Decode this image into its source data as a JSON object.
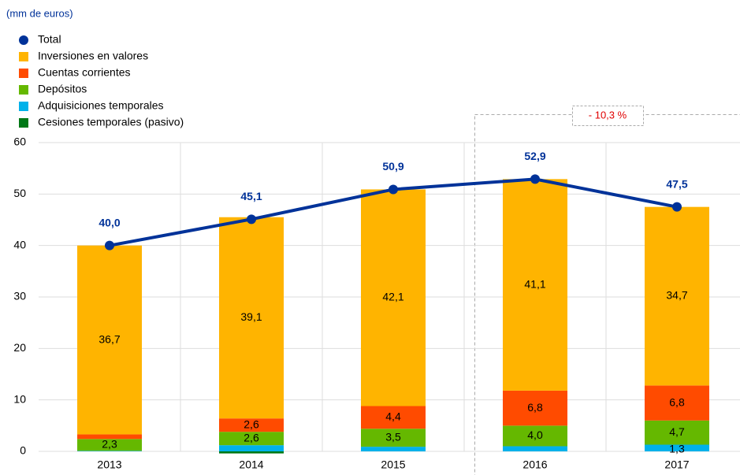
{
  "chart_data": {
    "type": "bar",
    "subtitle": "(mm de euros)",
    "categories": [
      "2013",
      "2014",
      "2015",
      "2016",
      "2017"
    ],
    "series": [
      {
        "name": "Cesiones temporales (pasivo)",
        "color": "#007816",
        "values": [
          0,
          -0.4,
          0,
          0,
          0
        ],
        "value_labels": [
          null,
          null,
          null,
          null,
          null
        ]
      },
      {
        "name": "Adquisiciones temporales",
        "color": "#00b1ea",
        "values": [
          0.1,
          1.2,
          0.9,
          1.0,
          1.3
        ],
        "value_labels": [
          null,
          null,
          null,
          null,
          "1,3"
        ]
      },
      {
        "name": "Depósitos",
        "color": "#65b800",
        "values": [
          2.3,
          2.6,
          3.5,
          4.0,
          4.7
        ],
        "value_labels": [
          "2,3",
          "2,6",
          "3,5",
          "4,0",
          "4,7"
        ]
      },
      {
        "name": "Cuentas corrientes",
        "color": "#ff4b00",
        "values": [
          0.9,
          2.6,
          4.4,
          6.8,
          6.8
        ],
        "value_labels": [
          null,
          "2,6",
          "4,4",
          "6,8",
          "6,8"
        ]
      },
      {
        "name": "Inversiones en valores",
        "color": "#ffb400",
        "values": [
          36.7,
          39.1,
          42.1,
          41.1,
          34.7
        ],
        "value_labels": [
          "36,7",
          "39,1",
          "42,1",
          "41,1",
          "34,7"
        ]
      },
      {
        "name": "Total",
        "color": "#003299",
        "type": "line",
        "values": [
          40.0,
          45.1,
          50.9,
          52.9,
          47.5
        ],
        "value_labels": [
          "40,0",
          "45,1",
          "50,9",
          "52,9",
          "47,5"
        ]
      }
    ],
    "annotation": "- 10,3 %",
    "ylim": [
      0,
      60
    ],
    "yticks": [
      0,
      10,
      20,
      30,
      40,
      50,
      60
    ],
    "grid": true
  }
}
